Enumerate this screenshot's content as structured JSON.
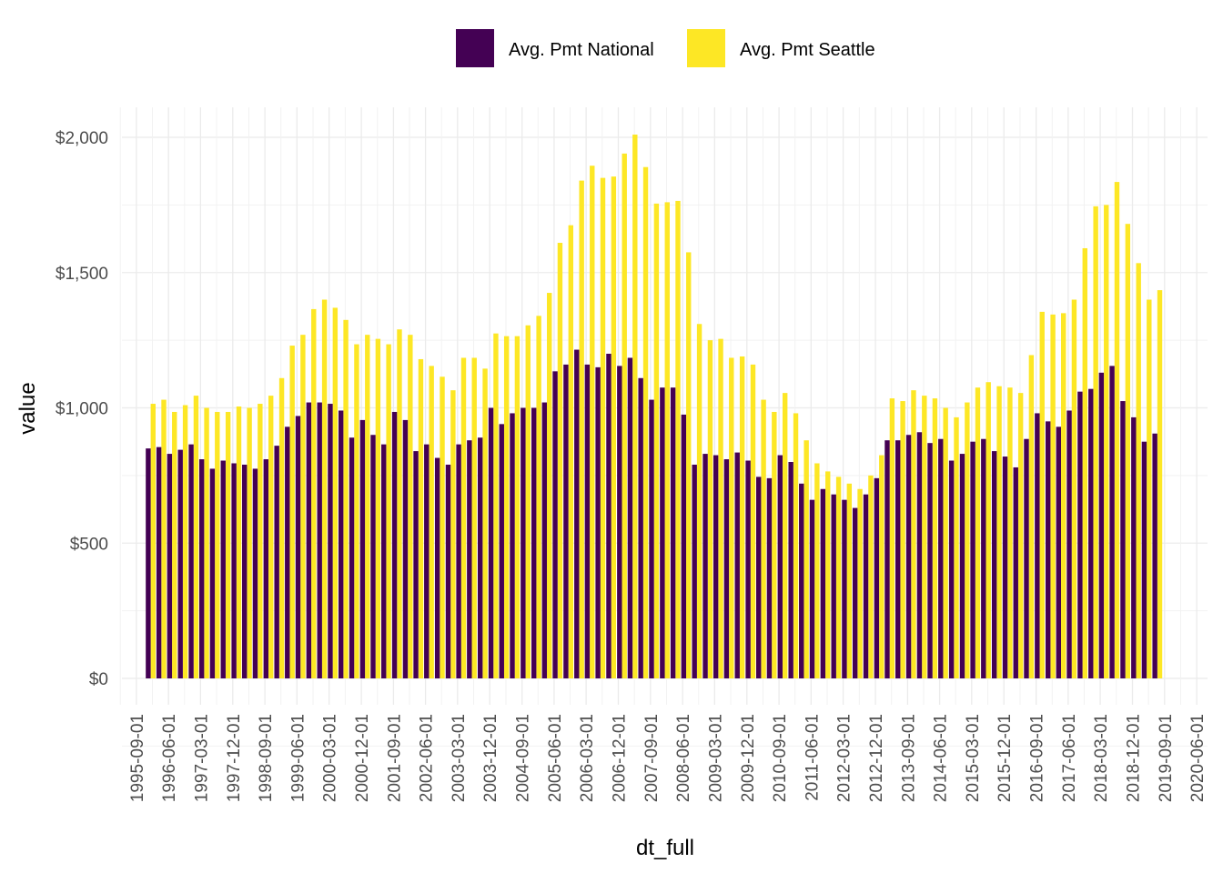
{
  "chart_data": {
    "type": "bar",
    "xlabel": "dt_full",
    "ylabel": "value",
    "ylim": [
      -90,
      2050
    ],
    "y_ticks": [
      0,
      500,
      1000,
      1500,
      2000
    ],
    "y_tick_labels": [
      "$0",
      "$500",
      "$1,000",
      "$1,500",
      "$2,000"
    ],
    "x_range": [
      "1995-05-01",
      "2020-09-01"
    ],
    "x_tick_labels": [
      "1995-09-01",
      "1996-06-01",
      "1997-03-01",
      "1997-12-01",
      "1998-09-01",
      "1999-06-01",
      "2000-03-01",
      "2000-12-01",
      "2001-09-01",
      "2002-06-01",
      "2003-03-01",
      "2003-12-01",
      "2004-09-01",
      "2005-06-01",
      "2006-03-01",
      "2006-12-01",
      "2007-09-01",
      "2008-06-01",
      "2009-03-01",
      "2009-12-01",
      "2010-09-01",
      "2011-06-01",
      "2012-03-01",
      "2012-12-01",
      "2013-09-01",
      "2014-06-01",
      "2015-03-01",
      "2015-12-01",
      "2016-09-01",
      "2017-06-01",
      "2018-03-01",
      "2018-12-01",
      "2019-09-01",
      "2020-06-01"
    ],
    "grid": true,
    "legend_position": "top",
    "x": [
      "1996-01-01",
      "1996-04-01",
      "1996-07-01",
      "1996-10-01",
      "1997-01-01",
      "1997-04-01",
      "1997-07-01",
      "1997-10-01",
      "1998-01-01",
      "1998-04-01",
      "1998-07-01",
      "1998-10-01",
      "1999-01-01",
      "1999-04-01",
      "1999-07-01",
      "1999-10-01",
      "2000-01-01",
      "2000-04-01",
      "2000-07-01",
      "2000-10-01",
      "2001-01-01",
      "2001-04-01",
      "2001-07-01",
      "2001-10-01",
      "2002-01-01",
      "2002-04-01",
      "2002-07-01",
      "2002-10-01",
      "2003-01-01",
      "2003-04-01",
      "2003-07-01",
      "2003-10-01",
      "2004-01-01",
      "2004-04-01",
      "2004-07-01",
      "2004-10-01",
      "2005-01-01",
      "2005-04-01",
      "2005-07-01",
      "2005-10-01",
      "2006-01-01",
      "2006-04-01",
      "2006-07-01",
      "2006-10-01",
      "2007-01-01",
      "2007-04-01",
      "2007-07-01",
      "2007-10-01",
      "2008-01-01",
      "2008-04-01",
      "2008-07-01",
      "2008-10-01",
      "2009-01-01",
      "2009-04-01",
      "2009-07-01",
      "2009-10-01",
      "2010-01-01",
      "2010-04-01",
      "2010-07-01",
      "2010-10-01",
      "2011-01-01",
      "2011-04-01",
      "2011-07-01",
      "2011-10-01",
      "2012-01-01",
      "2012-04-01",
      "2012-07-01",
      "2012-10-01",
      "2013-01-01",
      "2013-04-01",
      "2013-07-01",
      "2013-10-01",
      "2014-01-01",
      "2014-04-01",
      "2014-07-01",
      "2014-10-01",
      "2015-01-01",
      "2015-04-01",
      "2015-07-01",
      "2015-10-01",
      "2016-01-01",
      "2016-04-01",
      "2016-07-01",
      "2016-10-01",
      "2017-01-01",
      "2017-04-01",
      "2017-07-01",
      "2017-10-01",
      "2018-01-01",
      "2018-04-01",
      "2018-07-01",
      "2018-10-01",
      "2019-01-01",
      "2019-04-01",
      "2019-07-01"
    ],
    "series": [
      {
        "name": "Avg. Pmt National",
        "color": "#440154",
        "values": [
          850,
          855,
          830,
          845,
          865,
          810,
          775,
          805,
          795,
          790,
          775,
          810,
          860,
          930,
          970,
          1020,
          1020,
          1015,
          990,
          890,
          955,
          900,
          865,
          985,
          955,
          840,
          865,
          815,
          790,
          865,
          880,
          890,
          1000,
          940,
          980,
          1000,
          1000,
          1020,
          1135,
          1160,
          1215,
          1160,
          1150,
          1200,
          1155,
          1185,
          1110,
          1030,
          1075,
          1075,
          975,
          790,
          830,
          825,
          810,
          835,
          805,
          745,
          740,
          825,
          800,
          720,
          660,
          700,
          680,
          660,
          630,
          680,
          740,
          880,
          880,
          900,
          910,
          870,
          885,
          805,
          830,
          875,
          885,
          840,
          820,
          780,
          885,
          980,
          950,
          930,
          990,
          1060,
          1070,
          1130,
          1155,
          1025,
          965,
          875,
          905
        ]
      },
      {
        "name": "Avg. Pmt Seattle",
        "color": "#fde725",
        "values": [
          1015,
          1030,
          985,
          1010,
          1045,
          1000,
          985,
          985,
          1005,
          1000,
          1015,
          1045,
          1110,
          1230,
          1270,
          1365,
          1400,
          1370,
          1325,
          1235,
          1270,
          1255,
          1235,
          1290,
          1270,
          1180,
          1155,
          1115,
          1065,
          1185,
          1185,
          1145,
          1275,
          1265,
          1265,
          1305,
          1340,
          1425,
          1610,
          1675,
          1840,
          1895,
          1850,
          1855,
          1940,
          2010,
          1890,
          1755,
          1760,
          1765,
          1575,
          1310,
          1250,
          1255,
          1185,
          1190,
          1160,
          1030,
          985,
          1055,
          980,
          880,
          795,
          765,
          745,
          720,
          700,
          750,
          825,
          1035,
          1025,
          1065,
          1045,
          1035,
          1000,
          965,
          1020,
          1075,
          1095,
          1080,
          1075,
          1055,
          1195,
          1355,
          1345,
          1350,
          1400,
          1590,
          1745,
          1750,
          1835,
          1680,
          1535,
          1400,
          1435
        ]
      }
    ]
  }
}
